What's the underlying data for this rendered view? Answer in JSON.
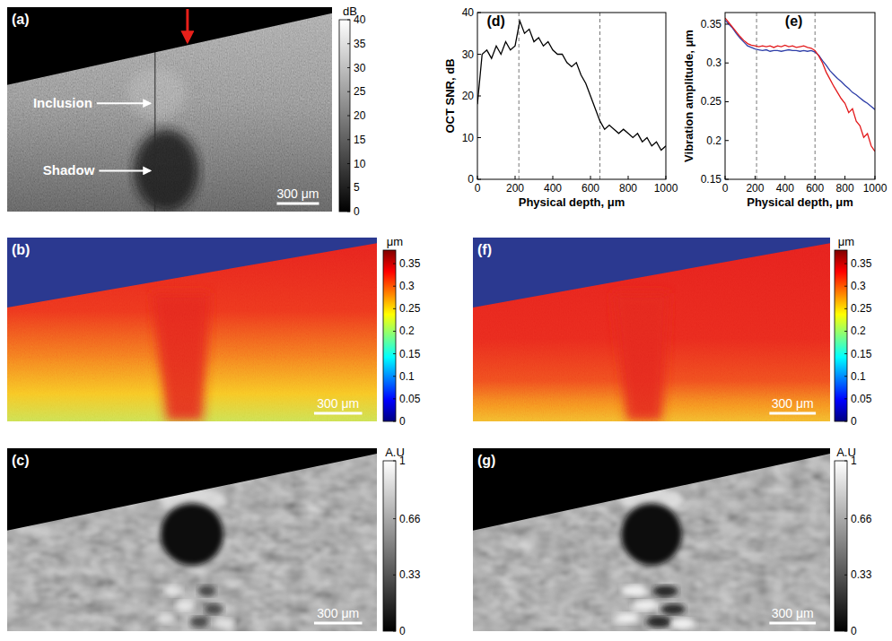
{
  "chart_data": [
    {
      "type": "line",
      "label": "(d)",
      "x_label": "Physical depth, μm",
      "y_label": "OCT SNR, dB",
      "x": [
        0,
        25,
        50,
        75,
        100,
        125,
        150,
        175,
        200,
        225,
        250,
        275,
        300,
        325,
        350,
        375,
        400,
        425,
        450,
        475,
        500,
        525,
        550,
        575,
        600,
        625,
        650,
        675,
        700,
        725,
        750,
        775,
        800,
        825,
        850,
        875,
        900,
        925,
        950,
        975,
        1000
      ],
      "series": [
        {
          "color": "#000000",
          "values": [
            18,
            30,
            31,
            29,
            32,
            30,
            33,
            31,
            32,
            38,
            35,
            36,
            33,
            34,
            32,
            33,
            31,
            30,
            30,
            28,
            27,
            28,
            25,
            23,
            20,
            17,
            14,
            12,
            13,
            12,
            11,
            12,
            11,
            10,
            11,
            9,
            10,
            8,
            9,
            7,
            8
          ]
        }
      ],
      "xlim": [
        0,
        1000
      ],
      "xticks": [
        0,
        200,
        400,
        600,
        800,
        1000
      ],
      "ylim": [
        0,
        40
      ],
      "yticks": [
        0,
        10,
        20,
        30,
        40
      ],
      "vlines": [
        220,
        650
      ],
      "line_style": "solid"
    },
    {
      "type": "line",
      "label": "(e)",
      "x_label": "Physical depth, μm",
      "y_label": "Vibration amplitude, μm",
      "x": [
        0,
        25,
        50,
        75,
        100,
        125,
        150,
        175,
        200,
        225,
        250,
        275,
        300,
        325,
        350,
        375,
        400,
        425,
        450,
        475,
        500,
        525,
        550,
        575,
        600,
        625,
        650,
        675,
        700,
        725,
        750,
        775,
        800,
        825,
        850,
        875,
        900,
        925,
        950,
        975,
        1000
      ],
      "series": [
        {
          "color": "#2e3ea8",
          "values": [
            0.355,
            0.35,
            0.345,
            0.338,
            0.332,
            0.327,
            0.322,
            0.32,
            0.318,
            0.317,
            0.316,
            0.317,
            0.315,
            0.316,
            0.316,
            0.315,
            0.316,
            0.317,
            0.316,
            0.316,
            0.315,
            0.316,
            0.315,
            0.316,
            0.314,
            0.31,
            0.303,
            0.297,
            0.29,
            0.285,
            0.28,
            0.276,
            0.271,
            0.267,
            0.262,
            0.259,
            0.255,
            0.251,
            0.248,
            0.244,
            0.24
          ]
        },
        {
          "color": "#e31a1c",
          "values": [
            0.358,
            0.352,
            0.346,
            0.34,
            0.334,
            0.329,
            0.325,
            0.323,
            0.322,
            0.321,
            0.322,
            0.321,
            0.322,
            0.32,
            0.322,
            0.321,
            0.323,
            0.321,
            0.322,
            0.32,
            0.321,
            0.322,
            0.32,
            0.319,
            0.316,
            0.309,
            0.3,
            0.288,
            0.279,
            0.27,
            0.262,
            0.254,
            0.248,
            0.236,
            0.241,
            0.225,
            0.219,
            0.204,
            0.209,
            0.193,
            0.186
          ]
        }
      ],
      "xlim": [
        0,
        1000
      ],
      "xticks": [
        0,
        200,
        400,
        600,
        800,
        1000
      ],
      "ylim": [
        0.15,
        0.365
      ],
      "yticks": [
        0.15,
        0.2,
        0.25,
        0.3,
        0.35
      ],
      "vlines": [
        210,
        600
      ],
      "line_style": "solid"
    }
  ],
  "images": [
    {
      "label": "(a)",
      "type": "intensity",
      "color": "gray",
      "scale_bar": "300 μm",
      "annotations": [
        "Inclusion",
        "Shadow"
      ],
      "colorbar": {
        "title": "dB",
        "range": [
          0,
          40
        ],
        "ticks": [
          0,
          5,
          10,
          15,
          20,
          25,
          30,
          35,
          40
        ]
      }
    },
    {
      "label": "(b)",
      "type": "amplitude",
      "color": "jet",
      "scale_bar": "300 μm",
      "colorbar": {
        "title": "μm",
        "range": [
          0,
          0.38
        ],
        "ticks": [
          0,
          0.05,
          0.1,
          0.15,
          0.2,
          0.25,
          0.3,
          0.35
        ]
      }
    },
    {
      "label": "(c)",
      "type": "strain",
      "color": "gray",
      "scale_bar": "300 μm",
      "colorbar": {
        "title": "A.U",
        "range": [
          0,
          1
        ],
        "ticks": [
          0,
          0.33,
          0.66,
          1
        ]
      }
    },
    {
      "label": "(f)",
      "type": "amplitude",
      "color": "jet",
      "scale_bar": "300 μm",
      "colorbar": {
        "title": "μm",
        "range": [
          0,
          0.38
        ],
        "ticks": [
          0,
          0.05,
          0.1,
          0.15,
          0.2,
          0.25,
          0.3,
          0.35
        ]
      }
    },
    {
      "label": "(g)",
      "type": "strain",
      "color": "gray",
      "scale_bar": "300 μm",
      "colorbar": {
        "title": "A.U",
        "range": [
          0,
          1
        ],
        "ticks": [
          0,
          0.33,
          0.66,
          1
        ]
      }
    }
  ]
}
